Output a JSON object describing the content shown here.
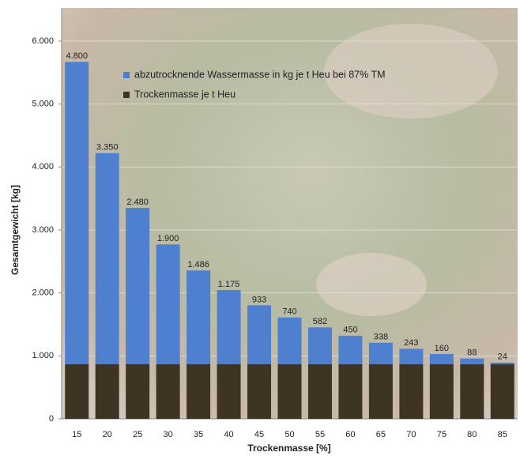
{
  "chart_data": {
    "type": "stacked-bar",
    "x_label": "Trockenmasse [%]",
    "y_label": "Gesamtgewicht [kg]",
    "categories": [
      "15",
      "20",
      "25",
      "30",
      "35",
      "40",
      "45",
      "50",
      "55",
      "60",
      "65",
      "70",
      "75",
      "80",
      "85"
    ],
    "series": [
      {
        "name": "Trockenmasse je t Heu",
        "color": "#3d3424",
        "values": [
          870,
          870,
          870,
          870,
          870,
          870,
          870,
          870,
          870,
          870,
          870,
          870,
          870,
          870,
          870
        ]
      },
      {
        "name": "abzutrocknende Wassermasse in kg je t Heu bei 87% TM",
        "color": "#4f7fcf",
        "values": [
          4800,
          3350,
          2480,
          1900,
          1486,
          1175,
          933,
          740,
          582,
          450,
          338,
          243,
          160,
          88,
          24
        ],
        "value_labels": [
          "4.800",
          "3.350",
          "2.480",
          "1.900",
          "1.486",
          "1.175",
          "933",
          "740",
          "582",
          "450",
          "338",
          "243",
          "160",
          "88",
          "24"
        ]
      }
    ],
    "ylim": [
      0,
      6000
    ],
    "yticks": [
      0,
      {
        "value": 1000,
        "label": "1.000"
      },
      {
        "value": 2000,
        "label": "2.000"
      },
      {
        "value": 3000,
        "label": "3.000"
      },
      {
        "value": 4000,
        "label": "4.000"
      },
      {
        "value": 5000,
        "label": "5.000"
      },
      {
        "value": 6000,
        "label": "6.000"
      }
    ],
    "grid": true
  }
}
